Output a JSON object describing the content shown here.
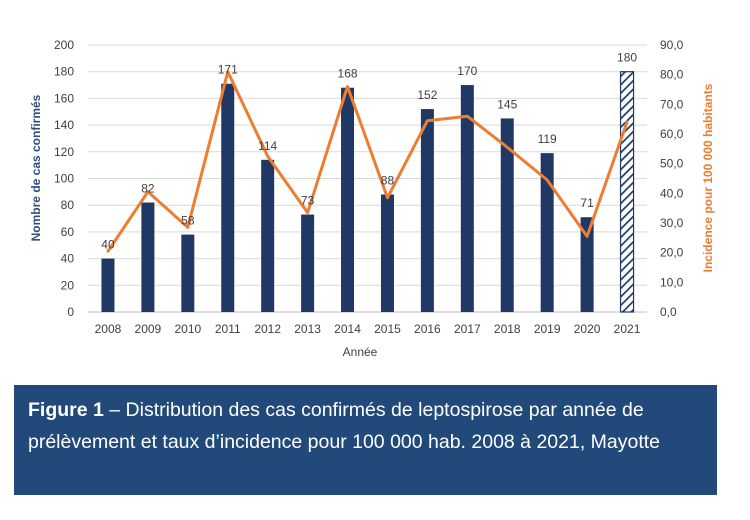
{
  "caption": {
    "label": "Figure 1",
    "text": " – Distribution des cas confirmés de leptospirose par année de prélèvement et taux d’incidence pour 100 000 hab. 2008 à 2021, Mayotte"
  },
  "chart_data": {
    "type": "bar",
    "categories": [
      "2008",
      "2009",
      "2010",
      "2011",
      "2012",
      "2013",
      "2014",
      "2015",
      "2016",
      "2017",
      "2018",
      "2019",
      "2020",
      "2021"
    ],
    "xlabel": "Année",
    "ylabel": "Nombre de cas confirmés",
    "y2label": "Incidence pour 100 000 habitants",
    "ylim": [
      0,
      200
    ],
    "y2lim": [
      0,
      90
    ],
    "yticks": [
      "0",
      "20",
      "40",
      "60",
      "80",
      "100",
      "120",
      "140",
      "160",
      "180",
      "200"
    ],
    "y2ticks": [
      "0,0",
      "10,0",
      "20,0",
      "30,0",
      "40,0",
      "50,0",
      "60,0",
      "70,0",
      "80,0",
      "90,0"
    ],
    "grid": true,
    "legend": "none",
    "series": [
      {
        "type": "bar",
        "axis": "left",
        "color": "#1f3864",
        "values": [
          40,
          82,
          58,
          171,
          114,
          73,
          168,
          88,
          152,
          170,
          145,
          119,
          71,
          180
        ],
        "labels": [
          "40",
          "82",
          "58",
          "171",
          "114",
          "73",
          "168",
          "88",
          "152",
          "170",
          "145",
          "119",
          "71",
          "180"
        ],
        "hatched_last": true
      },
      {
        "type": "line",
        "axis": "right",
        "color": "#ed7d31",
        "values": [
          20.5,
          40.5,
          28.5,
          81.0,
          52.5,
          33.5,
          76.0,
          38.5,
          64.5,
          66.0,
          55.5,
          44.5,
          25.5,
          64.0
        ]
      }
    ]
  }
}
